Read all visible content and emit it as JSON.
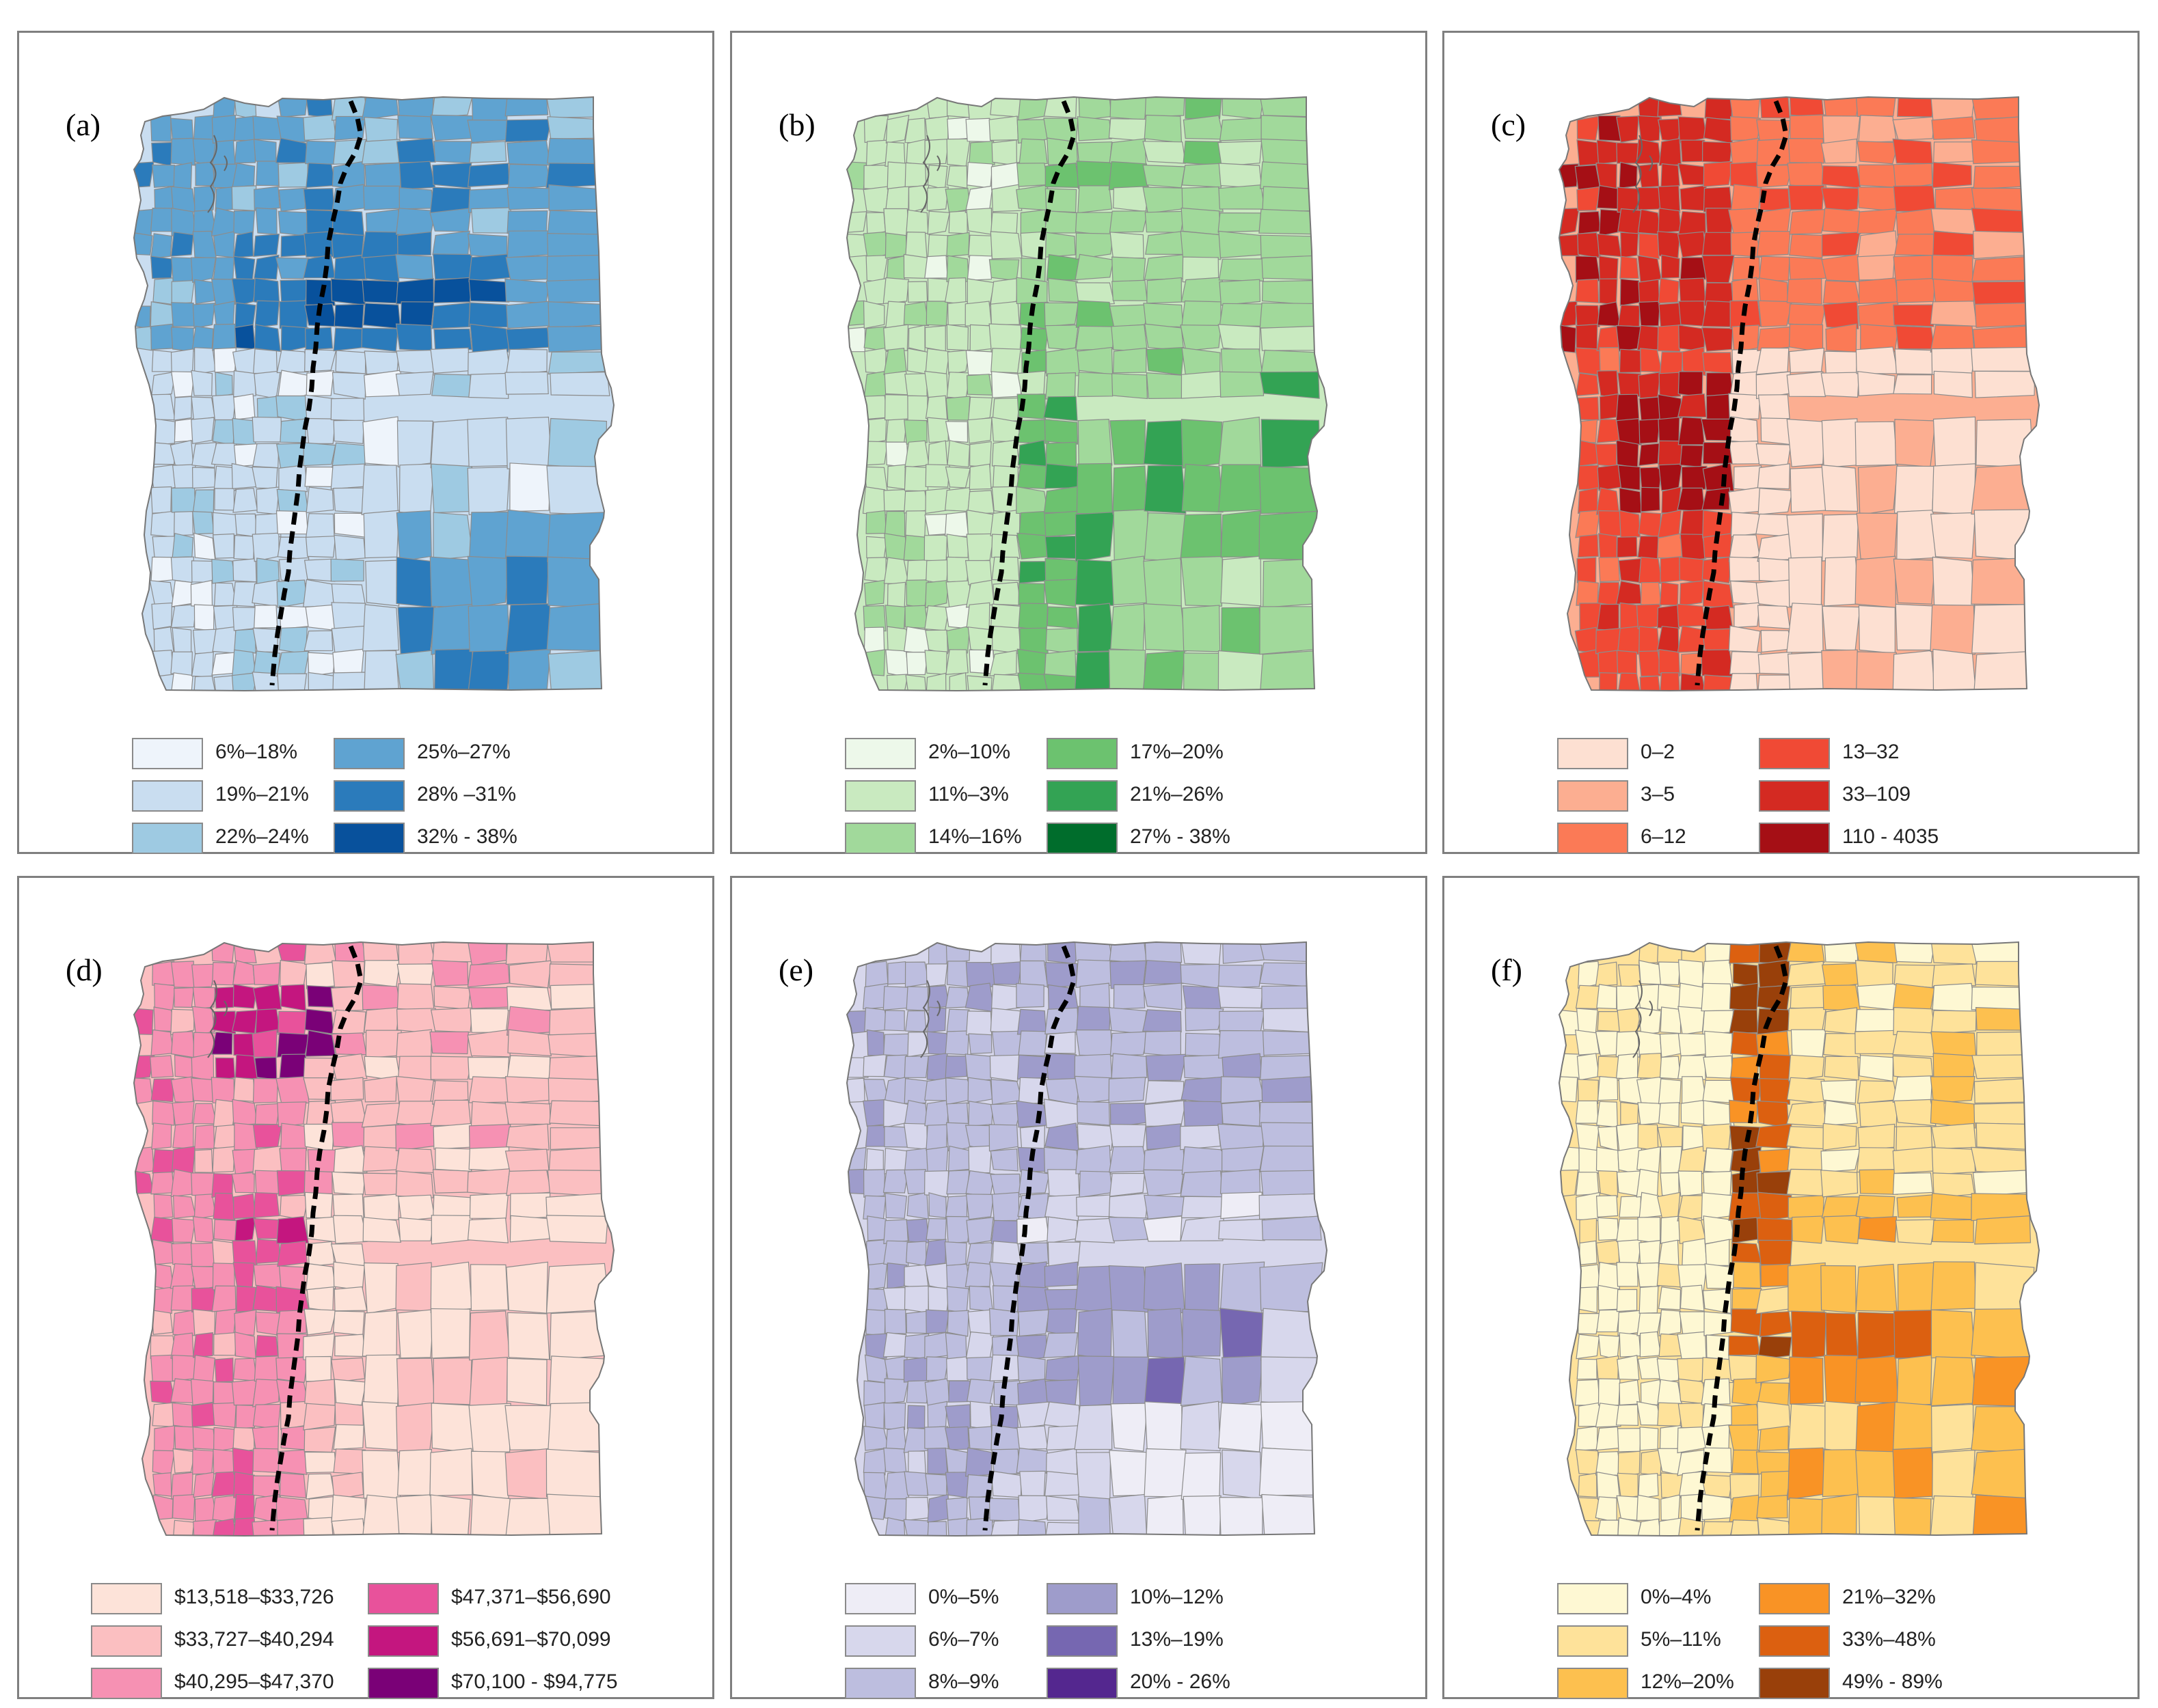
{
  "panels": [
    {
      "id": "a",
      "label": "(a)",
      "colors": [
        "#eef4fb",
        "#c9ddf0",
        "#9ecae2",
        "#5fa3d1",
        "#2b7bbb",
        "#08519c"
      ],
      "legend": [
        "6%–18%",
        "19%–21%",
        "22%–24%",
        "25%–27%",
        "28% –31%",
        "32% - 38%"
      ]
    },
    {
      "id": "b",
      "label": "(b)",
      "colors": [
        "#edf8ea",
        "#c9eac0",
        "#a1d99b",
        "#6cc26f",
        "#33a354",
        "#006d2c"
      ],
      "legend": [
        "2%–10%",
        "11%–3%",
        "14%–16%",
        "17%–20%",
        "21%–26%",
        "27% - 38%"
      ]
    },
    {
      "id": "c",
      "label": "(c)",
      "colors": [
        "#fde0d2",
        "#fcae91",
        "#fb7a56",
        "#f04a35",
        "#d42a22",
        "#a50f15"
      ],
      "legend": [
        "0–2",
        "3–5",
        "6–12",
        "13–32",
        "33–109",
        "110 - 4035"
      ]
    },
    {
      "id": "d",
      "label": "(d)",
      "colors": [
        "#fde3d9",
        "#fbbfc1",
        "#f691b3",
        "#e8529b",
        "#c4167f",
        "#7a0177"
      ],
      "legend": [
        "$13,518–$33,726",
        "$33,727–$40,294",
        "$40,295–$47,370",
        "$47,371–$56,690",
        "$56,691–$70,099",
        "$70,100 - $94,775"
      ]
    },
    {
      "id": "e",
      "label": "(e)",
      "colors": [
        "#eeedf6",
        "#d7d7ec",
        "#bdbedf",
        "#9e9ccb",
        "#7667b1",
        "#54278f"
      ],
      "legend": [
        "0%–5%",
        "6%–7%",
        "8%–9%",
        "10%–12%",
        "13%–19%",
        "20% - 26%"
      ]
    },
    {
      "id": "f",
      "label": "(f)",
      "colors": [
        "#fef8d3",
        "#fee29a",
        "#fdc04f",
        "#f99325",
        "#dc6010",
        "#99400a"
      ],
      "legend": [
        "0%–4%",
        "5%–11%",
        "12%–20%",
        "21%–32%",
        "33%–48%",
        "49% - 89%"
      ]
    }
  ]
}
